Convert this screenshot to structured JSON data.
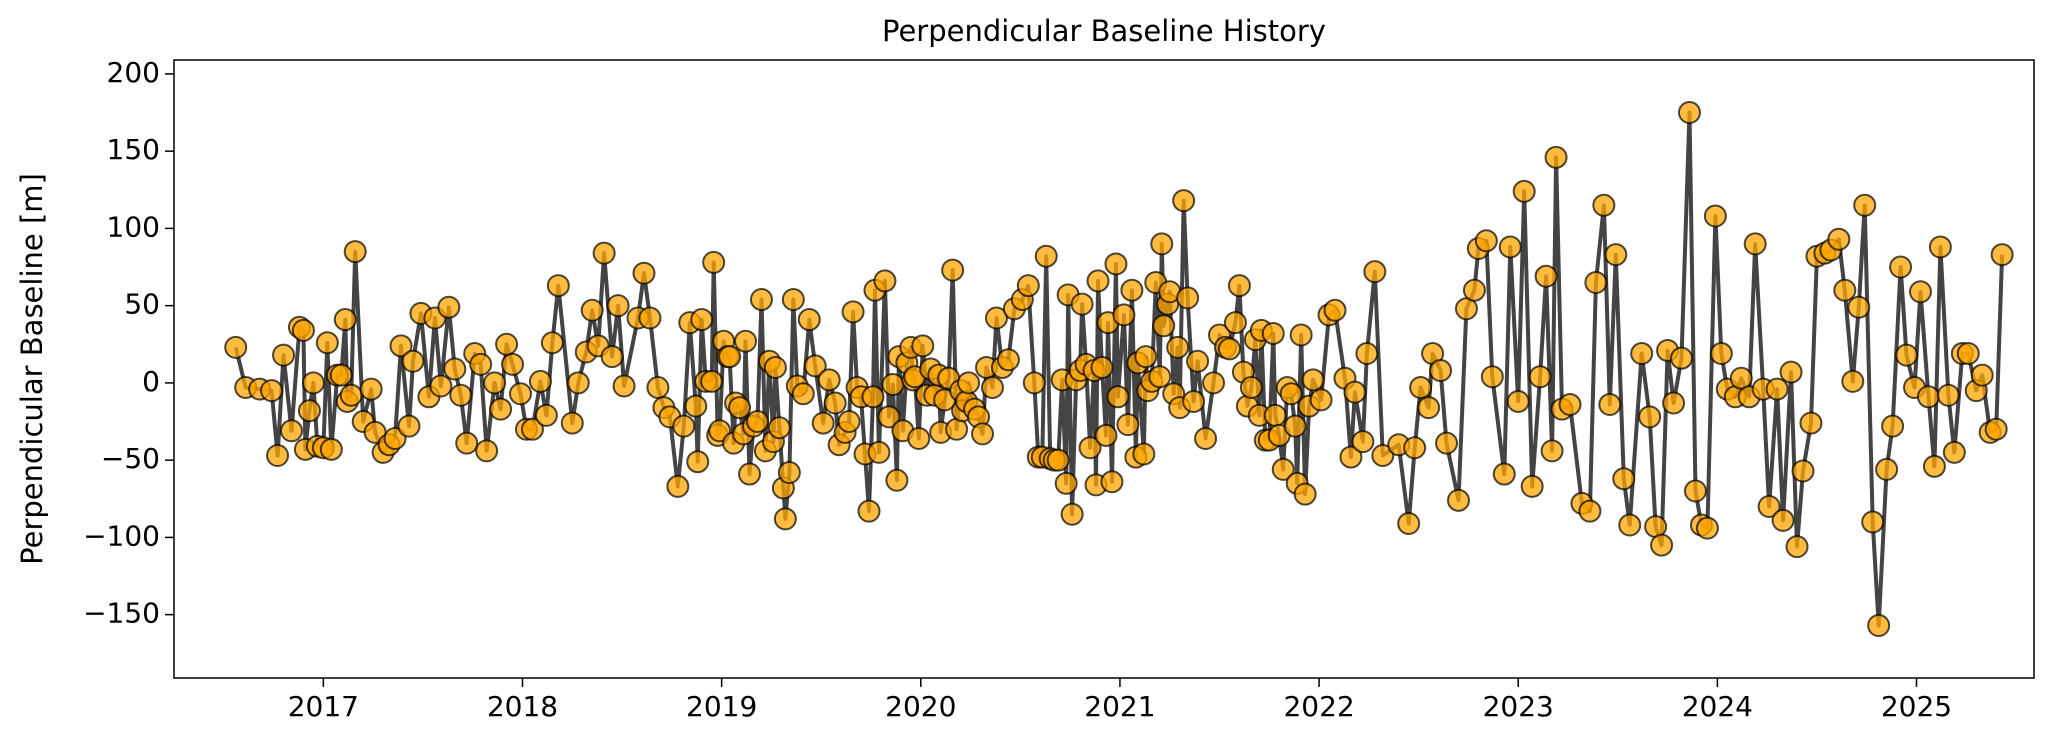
{
  "chart_data": {
    "type": "line",
    "title": "Perpendicular Baseline History",
    "ylabel": "Perpendicular Baseline [m]",
    "line_color": "#444444",
    "marker_color": "#ffa500",
    "xlim": [
      2016.25,
      2025.59
    ],
    "ylim": [
      -191,
      209
    ],
    "xticks": [
      2017,
      2018,
      2019,
      2020,
      2021,
      2022,
      2023,
      2024,
      2025
    ],
    "yticks": [
      {
        "value": -150,
        "label": "−150"
      },
      {
        "value": -100,
        "label": "−100"
      },
      {
        "value": -50,
        "label": "−50"
      },
      0,
      50,
      100,
      150,
      200
    ],
    "x": [
      2016.56,
      2016.61,
      2016.68,
      2016.74,
      2016.77,
      2016.8,
      2016.84,
      2016.88,
      2016.9,
      2016.91,
      2016.93,
      2016.95,
      2016.97,
      2017.0,
      2017.02,
      2017.04,
      2017.07,
      2017.09,
      2017.11,
      2017.12,
      2017.14,
      2017.16,
      2017.2,
      2017.24,
      2017.26,
      2017.3,
      2017.33,
      2017.36,
      2017.39,
      2017.43,
      2017.45,
      2017.49,
      2017.53,
      2017.56,
      2017.59,
      2017.63,
      2017.66,
      2017.69,
      2017.72,
      2017.76,
      2017.79,
      2017.82,
      2017.86,
      2017.89,
      2017.92,
      2017.95,
      2017.99,
      2018.02,
      2018.05,
      2018.09,
      2018.12,
      2018.15,
      2018.18,
      2018.25,
      2018.28,
      2018.32,
      2018.35,
      2018.38,
      2018.41,
      2018.45,
      2018.48,
      2018.51,
      2018.58,
      2018.61,
      2018.64,
      2018.68,
      2018.71,
      2018.74,
      2018.78,
      2018.81,
      2018.84,
      2018.87,
      2018.88,
      2018.9,
      2018.92,
      2018.95,
      2018.96,
      2018.98,
      2018.99,
      2019.01,
      2019.03,
      2019.04,
      2019.06,
      2019.07,
      2019.09,
      2019.11,
      2019.12,
      2019.14,
      2019.16,
      2019.18,
      2019.2,
      2019.22,
      2019.24,
      2019.26,
      2019.27,
      2019.29,
      2019.31,
      2019.32,
      2019.34,
      2019.36,
      2019.38,
      2019.41,
      2019.44,
      2019.47,
      2019.51,
      2019.54,
      2019.57,
      2019.59,
      2019.62,
      2019.64,
      2019.66,
      2019.68,
      2019.7,
      2019.72,
      2019.74,
      2019.76,
      2019.77,
      2019.79,
      2019.82,
      2019.84,
      2019.86,
      2019.88,
      2019.89,
      2019.91,
      2019.93,
      2019.95,
      2019.96,
      2019.97,
      2019.99,
      2020.01,
      2020.03,
      2020.05,
      2020.07,
      2020.09,
      2020.1,
      2020.12,
      2020.14,
      2020.16,
      2020.18,
      2020.2,
      2020.21,
      2020.23,
      2020.24,
      2020.27,
      2020.29,
      2020.31,
      2020.33,
      2020.36,
      2020.38,
      2020.41,
      2020.44,
      2020.47,
      2020.51,
      2020.54,
      2020.57,
      2020.59,
      2020.61,
      2020.63,
      2020.65,
      2020.67,
      2020.69,
      2020.71,
      2020.73,
      2020.74,
      2020.76,
      2020.78,
      2020.8,
      2020.81,
      2020.83,
      2020.85,
      2020.87,
      2020.88,
      2020.89,
      2020.91,
      2020.93,
      2020.94,
      2020.96,
      2020.98,
      2020.99,
      2021.02,
      2021.04,
      2021.06,
      2021.08,
      2021.09,
      2021.12,
      2021.13,
      2021.14,
      2021.16,
      2021.18,
      2021.2,
      2021.21,
      2021.22,
      2021.24,
      2021.25,
      2021.27,
      2021.29,
      2021.3,
      2021.32,
      2021.34,
      2021.37,
      2021.39,
      2021.43,
      2021.47,
      2021.5,
      2021.53,
      2021.55,
      2021.58,
      2021.6,
      2021.62,
      2021.64,
      2021.66,
      2021.68,
      2021.7,
      2021.71,
      2021.73,
      2021.75,
      2021.77,
      2021.78,
      2021.8,
      2021.82,
      2021.84,
      2021.86,
      2021.88,
      2021.89,
      2021.91,
      2021.93,
      2021.95,
      2021.97,
      2022.01,
      2022.05,
      2022.08,
      2022.13,
      2022.16,
      2022.18,
      2022.22,
      2022.24,
      2022.28,
      2022.32,
      2022.4,
      2022.45,
      2022.48,
      2022.51,
      2022.55,
      2022.57,
      2022.61,
      2022.64,
      2022.7,
      2022.74,
      2022.78,
      2022.8,
      2022.84,
      2022.87,
      2022.93,
      2022.96,
      2023.0,
      2023.03,
      2023.07,
      2023.11,
      2023.14,
      2023.17,
      2023.19,
      2023.22,
      2023.26,
      2023.32,
      2023.36,
      2023.39,
      2023.43,
      2023.46,
      2023.49,
      2023.53,
      2023.56,
      2023.62,
      2023.66,
      2023.69,
      2023.72,
      2023.75,
      2023.78,
      2023.82,
      2023.86,
      2023.89,
      2023.92,
      2023.95,
      2023.99,
      2024.02,
      2024.05,
      2024.09,
      2024.12,
      2024.16,
      2024.19,
      2024.23,
      2024.26,
      2024.3,
      2024.33,
      2024.37,
      2024.4,
      2024.43,
      2024.47,
      2024.5,
      2024.54,
      2024.57,
      2024.61,
      2024.64,
      2024.68,
      2024.71,
      2024.74,
      2024.78,
      2024.81,
      2024.85,
      2024.88,
      2024.92,
      2024.95,
      2024.99,
      2025.02,
      2025.06,
      2025.09,
      2025.12,
      2025.16,
      2025.19,
      2025.23,
      2025.26,
      2025.3,
      2025.33,
      2025.37,
      2025.4,
      2025.43
    ],
    "values": [
      23,
      -3,
      -4,
      -5,
      -47,
      18,
      -31,
      36,
      34,
      -43,
      -18,
      0,
      -41,
      -42,
      26,
      -43,
      5,
      5,
      41,
      -12,
      -8,
      85,
      -25,
      -4,
      -32,
      -45,
      -40,
      -36,
      24,
      -28,
      14,
      45,
      -9,
      42,
      -2,
      49,
      9,
      -8,
      -39,
      19,
      12,
      -44,
      0,
      -17,
      25,
      12,
      -7,
      -30,
      -30,
      1,
      -21,
      26,
      63,
      -26,
      0,
      20,
      47,
      24,
      84,
      17,
      50,
      -2,
      42,
      71,
      42,
      -3,
      -16,
      -22,
      -67,
      -28,
      39,
      -15,
      -51,
      41,
      1,
      1,
      78,
      -34,
      -31,
      27,
      17,
      17,
      -39,
      -13,
      -16,
      -33,
      27,
      -59,
      -28,
      -25,
      54,
      -44,
      14,
      -38,
      10,
      -29,
      -68,
      -88,
      -58,
      54,
      -2,
      -7,
      41,
      11,
      -26,
      2,
      -13,
      -40,
      -32,
      -25,
      46,
      -3,
      -9,
      -46,
      -83,
      -9,
      60,
      -45,
      66,
      -22,
      -1,
      -63,
      17,
      -31,
      13,
      23,
      2,
      4,
      -36,
      24,
      -8,
      9,
      -8,
      5,
      -32,
      -11,
      3,
      73,
      -30,
      -5,
      -18,
      -12,
      0,
      -17,
      -22,
      -33,
      10,
      -3,
      42,
      10,
      15,
      48,
      54,
      63,
      0,
      -48,
      -48,
      82,
      -49,
      -50,
      -50,
      2,
      -65,
      57,
      -85,
      2,
      8,
      51,
      12,
      -42,
      8,
      -66,
      66,
      10,
      -34,
      39,
      -64,
      77,
      -9,
      44,
      -27,
      60,
      -48,
      13,
      -46,
      17,
      -5,
      1,
      65,
      4,
      90,
      37,
      51,
      59,
      -7,
      23,
      -16,
      118,
      55,
      -12,
      14,
      -36,
      0,
      31,
      23,
      22,
      39,
      63,
      7,
      -15,
      -3,
      28,
      -21,
      34,
      -37,
      -37,
      32,
      -21,
      -34,
      -56,
      -3,
      -7,
      -28,
      -65,
      31,
      -72,
      -15,
      2,
      -11,
      44,
      47,
      3,
      -48,
      -6,
      -38,
      19,
      72,
      -47,
      -40,
      -91,
      -42,
      -3,
      -16,
      19,
      8,
      -39,
      -76,
      48,
      60,
      87,
      92,
      4,
      -59,
      88,
      -12,
      124,
      -67,
      4,
      69,
      -44,
      146,
      -17,
      -14,
      -78,
      -83,
      65,
      115,
      -14,
      83,
      -62,
      -92,
      19,
      -22,
      -93,
      -105,
      21,
      -13,
      16,
      175,
      -70,
      -92,
      -94,
      108,
      19,
      -4,
      -9,
      3,
      -9,
      90,
      -4,
      -80,
      -4,
      -89,
      7,
      -106,
      -57,
      -26,
      82,
      84,
      86,
      93,
      60,
      1,
      49,
      115,
      -90,
      -157,
      -56,
      -28,
      75,
      18,
      -3,
      59,
      -9,
      -54,
      88,
      -8,
      -45,
      19,
      19,
      -5,
      5,
      -32,
      -30,
      83
    ]
  }
}
